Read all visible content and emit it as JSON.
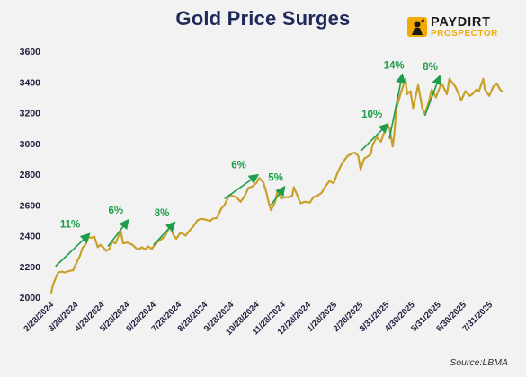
{
  "title": "Gold Price Surges",
  "logo": {
    "line1": "PAYDIRT",
    "line2": "PROSPECTOR"
  },
  "source": "Source:LBMA",
  "colors": {
    "line": "#c8a02a",
    "arrow": "#1e9e4a",
    "title": "#1f2a5a",
    "axis": "#1f1f3f"
  },
  "chart_data": {
    "type": "line",
    "title": "Gold Price Surges",
    "xlabel": "",
    "ylabel": "",
    "ylim": [
      2000,
      3600
    ],
    "yticks": [
      2000,
      2200,
      2400,
      2600,
      2800,
      3000,
      3200,
      3400,
      3600
    ],
    "xticks": [
      "2/28/2024",
      "3/28/2024",
      "4/28/2024",
      "5/28/2024",
      "6/28/2024",
      "7/28/2024",
      "8/28/2024",
      "9/28/2024",
      "10/28/2024",
      "11/28/2024",
      "12/28/2024",
      "1/28/2025",
      "2/28/2025",
      "3/31/2025",
      "4/30/2025",
      "5/31/2025",
      "6/30/2025",
      "7/31/2025"
    ],
    "grid": false,
    "series": [
      {
        "values": [
          {
            "x": "2024-02-28",
            "y": 2030
          },
          {
            "x": "2024-03-01",
            "y": 2080
          },
          {
            "x": "2024-03-04",
            "y": 2120
          },
          {
            "x": "2024-03-07",
            "y": 2160
          },
          {
            "x": "2024-03-12",
            "y": 2165
          },
          {
            "x": "2024-03-15",
            "y": 2160
          },
          {
            "x": "2024-03-20",
            "y": 2170
          },
          {
            "x": "2024-03-25",
            "y": 2175
          },
          {
            "x": "2024-03-28",
            "y": 2215
          },
          {
            "x": "2024-04-02",
            "y": 2270
          },
          {
            "x": "2024-04-05",
            "y": 2320
          },
          {
            "x": "2024-04-09",
            "y": 2345
          },
          {
            "x": "2024-04-12",
            "y": 2390
          },
          {
            "x": "2024-04-16",
            "y": 2385
          },
          {
            "x": "2024-04-19",
            "y": 2395
          },
          {
            "x": "2024-04-23",
            "y": 2325
          },
          {
            "x": "2024-04-26",
            "y": 2340
          },
          {
            "x": "2024-04-30",
            "y": 2320
          },
          {
            "x": "2024-05-03",
            "y": 2300
          },
          {
            "x": "2024-05-07",
            "y": 2315
          },
          {
            "x": "2024-05-10",
            "y": 2360
          },
          {
            "x": "2024-05-14",
            "y": 2350
          },
          {
            "x": "2024-05-17",
            "y": 2390
          },
          {
            "x": "2024-05-20",
            "y": 2435
          },
          {
            "x": "2024-05-23",
            "y": 2350
          },
          {
            "x": "2024-05-28",
            "y": 2355
          },
          {
            "x": "2024-06-03",
            "y": 2340
          },
          {
            "x": "2024-06-07",
            "y": 2320
          },
          {
            "x": "2024-06-11",
            "y": 2310
          },
          {
            "x": "2024-06-14",
            "y": 2325
          },
          {
            "x": "2024-06-18",
            "y": 2310
          },
          {
            "x": "2024-06-21",
            "y": 2330
          },
          {
            "x": "2024-06-26",
            "y": 2315
          },
          {
            "x": "2024-06-28",
            "y": 2330
          },
          {
            "x": "2024-07-03",
            "y": 2360
          },
          {
            "x": "2024-07-08",
            "y": 2380
          },
          {
            "x": "2024-07-12",
            "y": 2400
          },
          {
            "x": "2024-07-17",
            "y": 2460
          },
          {
            "x": "2024-07-22",
            "y": 2400
          },
          {
            "x": "2024-07-25",
            "y": 2380
          },
          {
            "x": "2024-07-30",
            "y": 2420
          },
          {
            "x": "2024-08-05",
            "y": 2400
          },
          {
            "x": "2024-08-09",
            "y": 2430
          },
          {
            "x": "2024-08-14",
            "y": 2460
          },
          {
            "x": "2024-08-19",
            "y": 2500
          },
          {
            "x": "2024-08-23",
            "y": 2510
          },
          {
            "x": "2024-08-28",
            "y": 2505
          },
          {
            "x": "2024-09-03",
            "y": 2495
          },
          {
            "x": "2024-09-06",
            "y": 2510
          },
          {
            "x": "2024-09-11",
            "y": 2515
          },
          {
            "x": "2024-09-16",
            "y": 2575
          },
          {
            "x": "2024-09-20",
            "y": 2600
          },
          {
            "x": "2024-09-26",
            "y": 2665
          },
          {
            "x": "2024-10-01",
            "y": 2655
          },
          {
            "x": "2024-10-04",
            "y": 2650
          },
          {
            "x": "2024-10-09",
            "y": 2620
          },
          {
            "x": "2024-10-14",
            "y": 2660
          },
          {
            "x": "2024-10-18",
            "y": 2710
          },
          {
            "x": "2024-10-23",
            "y": 2720
          },
          {
            "x": "2024-10-28",
            "y": 2745
          },
          {
            "x": "2024-10-31",
            "y": 2775
          },
          {
            "x": "2024-11-05",
            "y": 2745
          },
          {
            "x": "2024-11-08",
            "y": 2690
          },
          {
            "x": "2024-11-11",
            "y": 2620
          },
          {
            "x": "2024-11-14",
            "y": 2565
          },
          {
            "x": "2024-11-19",
            "y": 2620
          },
          {
            "x": "2024-11-22",
            "y": 2700
          },
          {
            "x": "2024-11-26",
            "y": 2640
          },
          {
            "x": "2024-11-29",
            "y": 2650
          },
          {
            "x": "2024-12-04",
            "y": 2650
          },
          {
            "x": "2024-12-09",
            "y": 2660
          },
          {
            "x": "2024-12-11",
            "y": 2715
          },
          {
            "x": "2024-12-16",
            "y": 2650
          },
          {
            "x": "2024-12-19",
            "y": 2610
          },
          {
            "x": "2024-12-24",
            "y": 2620
          },
          {
            "x": "2024-12-30",
            "y": 2615
          },
          {
            "x": "2025-01-03",
            "y": 2650
          },
          {
            "x": "2025-01-08",
            "y": 2660
          },
          {
            "x": "2025-01-13",
            "y": 2680
          },
          {
            "x": "2025-01-16",
            "y": 2710
          },
          {
            "x": "2025-01-22",
            "y": 2755
          },
          {
            "x": "2025-01-27",
            "y": 2740
          },
          {
            "x": "2025-01-31",
            "y": 2800
          },
          {
            "x": "2025-02-05",
            "y": 2860
          },
          {
            "x": "2025-02-10",
            "y": 2900
          },
          {
            "x": "2025-02-13",
            "y": 2920
          },
          {
            "x": "2025-02-18",
            "y": 2935
          },
          {
            "x": "2025-02-21",
            "y": 2940
          },
          {
            "x": "2025-02-25",
            "y": 2920
          },
          {
            "x": "2025-02-28",
            "y": 2830
          },
          {
            "x": "2025-03-04",
            "y": 2900
          },
          {
            "x": "2025-03-07",
            "y": 2910
          },
          {
            "x": "2025-03-12",
            "y": 2930
          },
          {
            "x": "2025-03-14",
            "y": 2990
          },
          {
            "x": "2025-03-19",
            "y": 3040
          },
          {
            "x": "2025-03-24",
            "y": 3010
          },
          {
            "x": "2025-03-27",
            "y": 3060
          },
          {
            "x": "2025-04-01",
            "y": 3120
          },
          {
            "x": "2025-04-03",
            "y": 3100
          },
          {
            "x": "2025-04-07",
            "y": 2980
          },
          {
            "x": "2025-04-09",
            "y": 3070
          },
          {
            "x": "2025-04-11",
            "y": 3220
          },
          {
            "x": "2025-04-16",
            "y": 3320
          },
          {
            "x": "2025-04-22",
            "y": 3420
          },
          {
            "x": "2025-04-24",
            "y": 3320
          },
          {
            "x": "2025-04-28",
            "y": 3340
          },
          {
            "x": "2025-05-01",
            "y": 3230
          },
          {
            "x": "2025-05-05",
            "y": 3330
          },
          {
            "x": "2025-05-07",
            "y": 3380
          },
          {
            "x": "2025-05-12",
            "y": 3230
          },
          {
            "x": "2025-05-15",
            "y": 3190
          },
          {
            "x": "2025-05-20",
            "y": 3280
          },
          {
            "x": "2025-05-23",
            "y": 3350
          },
          {
            "x": "2025-05-28",
            "y": 3300
          },
          {
            "x": "2025-06-02",
            "y": 3370
          },
          {
            "x": "2025-06-05",
            "y": 3380
          },
          {
            "x": "2025-06-10",
            "y": 3320
          },
          {
            "x": "2025-06-13",
            "y": 3420
          },
          {
            "x": "2025-06-17",
            "y": 3390
          },
          {
            "x": "2025-06-20",
            "y": 3370
          },
          {
            "x": "2025-06-24",
            "y": 3320
          },
          {
            "x": "2025-06-27",
            "y": 3280
          },
          {
            "x": "2025-07-02",
            "y": 3340
          },
          {
            "x": "2025-07-07",
            "y": 3310
          },
          {
            "x": "2025-07-10",
            "y": 3320
          },
          {
            "x": "2025-07-15",
            "y": 3350
          },
          {
            "x": "2025-07-18",
            "y": 3340
          },
          {
            "x": "2025-07-23",
            "y": 3420
          },
          {
            "x": "2025-07-25",
            "y": 3350
          },
          {
            "x": "2025-07-30",
            "y": 3310
          },
          {
            "x": "2025-08-04",
            "y": 3370
          },
          {
            "x": "2025-08-08",
            "y": 3390
          },
          {
            "x": "2025-08-12",
            "y": 3350
          },
          {
            "x": "2025-08-14",
            "y": 3340
          }
        ]
      }
    ],
    "annotations": [
      {
        "label": "11%",
        "from": {
          "x": "2024-03-04",
          "y": 2200
        },
        "to": {
          "x": "2024-04-12",
          "y": 2405
        }
      },
      {
        "label": "6%",
        "from": {
          "x": "2024-05-05",
          "y": 2330
        },
        "to": {
          "x": "2024-05-28",
          "y": 2495
        }
      },
      {
        "label": "8%",
        "from": {
          "x": "2024-06-28",
          "y": 2340
        },
        "to": {
          "x": "2024-07-22",
          "y": 2480
        }
      },
      {
        "label": "6%",
        "from": {
          "x": "2024-09-20",
          "y": 2640
        },
        "to": {
          "x": "2024-10-28",
          "y": 2790
        }
      },
      {
        "label": "5%",
        "from": {
          "x": "2024-11-14",
          "y": 2600
        },
        "to": {
          "x": "2024-11-29",
          "y": 2710
        }
      },
      {
        "label": "10%",
        "from": {
          "x": "2025-02-28",
          "y": 2950
        },
        "to": {
          "x": "2025-03-31",
          "y": 3120
        }
      },
      {
        "label": "14%",
        "from": {
          "x": "2025-04-03",
          "y": 3030
        },
        "to": {
          "x": "2025-04-18",
          "y": 3440
        }
      },
      {
        "label": "8%",
        "from": {
          "x": "2025-05-15",
          "y": 3180
        },
        "to": {
          "x": "2025-06-01",
          "y": 3430
        }
      }
    ]
  }
}
